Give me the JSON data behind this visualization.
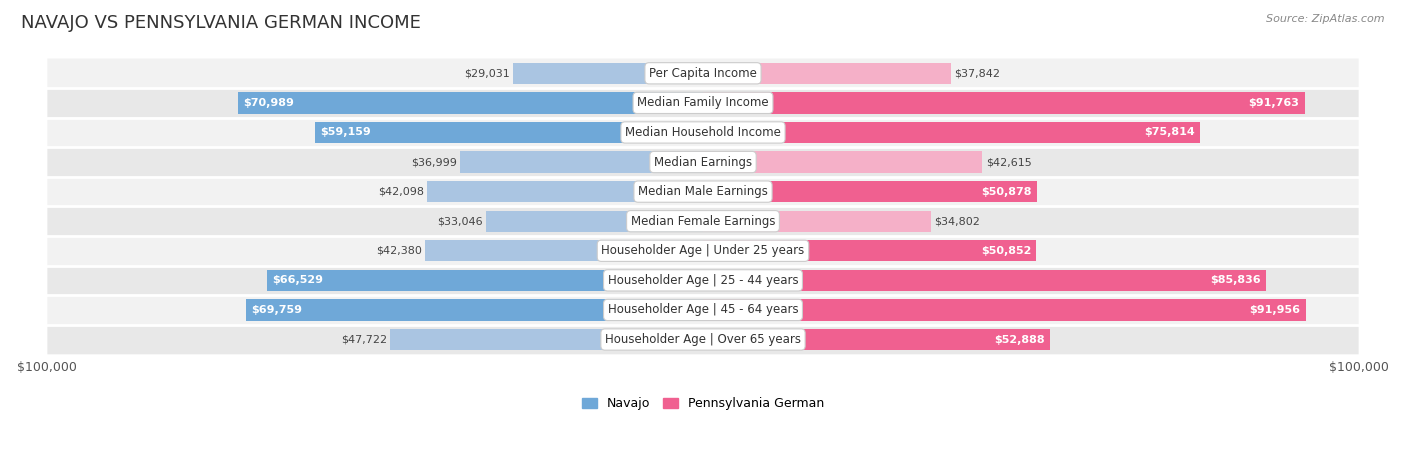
{
  "title": "NAVAJO VS PENNSYLVANIA GERMAN INCOME",
  "source": "Source: ZipAtlas.com",
  "categories": [
    "Per Capita Income",
    "Median Family Income",
    "Median Household Income",
    "Median Earnings",
    "Median Male Earnings",
    "Median Female Earnings",
    "Householder Age | Under 25 years",
    "Householder Age | 25 - 44 years",
    "Householder Age | 45 - 64 years",
    "Householder Age | Over 65 years"
  ],
  "navajo_values": [
    29031,
    70989,
    59159,
    36999,
    42098,
    33046,
    42380,
    66529,
    69759,
    47722
  ],
  "penn_values": [
    37842,
    91763,
    75814,
    42615,
    50878,
    34802,
    50852,
    85836,
    91956,
    52888
  ],
  "navajo_labels": [
    "$29,031",
    "$70,989",
    "$59,159",
    "$36,999",
    "$42,098",
    "$33,046",
    "$42,380",
    "$66,529",
    "$69,759",
    "$47,722"
  ],
  "penn_labels": [
    "$37,842",
    "$91,763",
    "$75,814",
    "$42,615",
    "$50,878",
    "$34,802",
    "$50,852",
    "$85,836",
    "$91,956",
    "$52,888"
  ],
  "max_value": 100000,
  "navajo_color_light": "#aac5e2",
  "navajo_color_dark": "#6fa8d8",
  "penn_color_light": "#f5b0c8",
  "penn_color_dark": "#f06090",
  "label_bg_color": "#ffffff",
  "row_bg_even": "#f2f2f2",
  "row_bg_odd": "#e8e8e8",
  "background_color": "#ffffff",
  "separator_color": "#ffffff",
  "title_fontsize": 13,
  "label_fontsize": 8.5,
  "value_fontsize": 8,
  "axis_label": "$100,000",
  "legend_navajo": "Navajo",
  "legend_penn": "Pennsylvania German",
  "navajo_threshold": 50000,
  "penn_threshold": 50000
}
